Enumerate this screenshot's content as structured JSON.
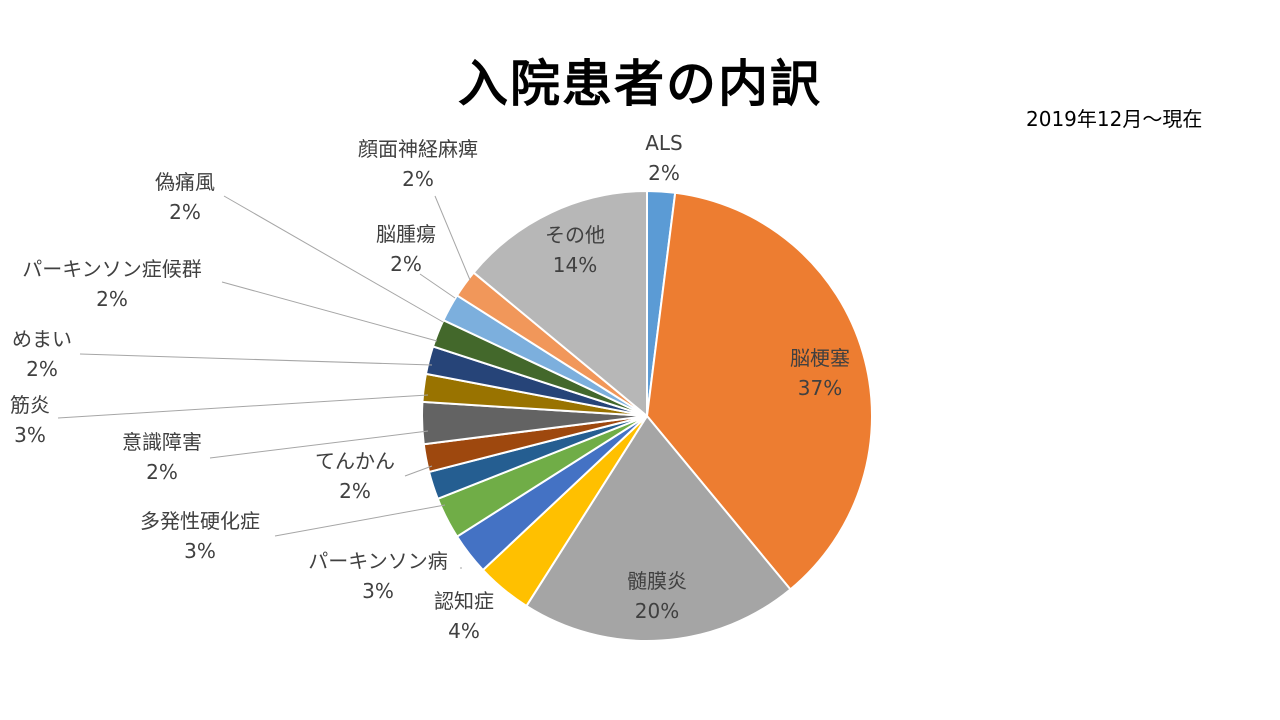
{
  "title": "入院患者の内訳",
  "period": "2019年12月〜現在",
  "chart_data": {
    "type": "pie",
    "title": "入院患者の内訳",
    "subtitle": "2019年12月〜現在",
    "start": "12 o'clock, clockwise",
    "slices": [
      {
        "label": "ALS",
        "pct_label": "2%",
        "value": 2,
        "color": "#5B9BD5"
      },
      {
        "label": "脳梗塞",
        "pct_label": "37%",
        "value": 37,
        "color": "#ED7D31"
      },
      {
        "label": "髄膜炎",
        "pct_label": "20%",
        "value": 20,
        "color": "#A5A5A5"
      },
      {
        "label": "認知症",
        "pct_label": "4%",
        "value": 4,
        "color": "#FFC000"
      },
      {
        "label": "パーキンソン病",
        "pct_label": "3%",
        "value": 3,
        "color": "#4472C4"
      },
      {
        "label": "多発性硬化症",
        "pct_label": "3%",
        "value": 3,
        "color": "#70AD47"
      },
      {
        "label": "てんかん",
        "pct_label": "2%",
        "value": 2,
        "color": "#255E91"
      },
      {
        "label": "意識障害",
        "pct_label": "2%",
        "value": 2,
        "color": "#9E480E"
      },
      {
        "label": "筋炎",
        "pct_label": "3%",
        "value": 3,
        "color": "#636363"
      },
      {
        "label": "めまい",
        "pct_label": "2%",
        "value": 2,
        "color": "#997300"
      },
      {
        "label": "パーキンソン症候群",
        "pct_label": "2%",
        "value": 2,
        "color": "#264478"
      },
      {
        "label": "偽痛風",
        "pct_label": "2%",
        "value": 2,
        "color": "#43682B"
      },
      {
        "label": "脳腫瘍",
        "pct_label": "2%",
        "value": 2,
        "color": "#7CAFDD"
      },
      {
        "label": "顔面神経麻痺",
        "pct_label": "2%",
        "value": 2,
        "color": "#F1975A"
      },
      {
        "label": "その他",
        "pct_label": "14%",
        "value": 14,
        "color": "#B7B7B7"
      }
    ]
  }
}
